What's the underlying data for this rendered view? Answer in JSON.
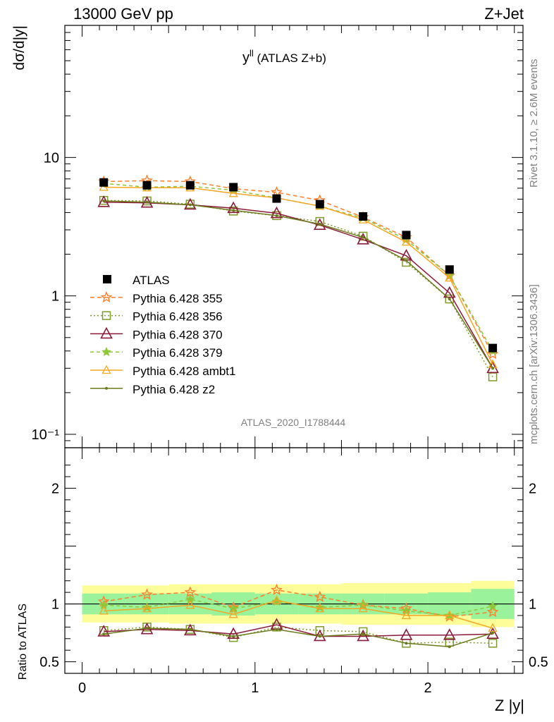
{
  "header": {
    "left": "13000 GeV pp",
    "right": "Z+Jet"
  },
  "title": {
    "main": "y",
    "sup": "ll",
    "rest": " (ATLAS Z+b)"
  },
  "side_labels": {
    "rivet": "Rivet 3.1.10, ≥ 2.6M events",
    "mcplots": "mcplots.cern.ch [arXiv:1306.3436]"
  },
  "watermark": "ATLAS_2020_I1788444",
  "axes": {
    "main_ylabel": "dσ/d|y|",
    "ratio_ylabel": "Ratio to ATLAS",
    "xlabel": "Z |y|",
    "main_ticks": [
      {
        "v": 0.1,
        "label": "10⁻¹"
      },
      {
        "v": 1,
        "label": "1"
      },
      {
        "v": 10,
        "label": "10"
      }
    ],
    "ratio_ticks": [
      {
        "v": 0.5,
        "label": "0.5"
      },
      {
        "v": 1,
        "label": "1"
      },
      {
        "v": 2,
        "label": "2"
      }
    ],
    "x_ticks": [
      {
        "v": 0,
        "label": "0"
      },
      {
        "v": 1,
        "label": "1"
      },
      {
        "v": 2,
        "label": "2"
      }
    ]
  },
  "colors": {
    "data": "#000000",
    "s355": "#ff7f2a",
    "s356": "#7f9a2a",
    "s370": "#8b1a3a",
    "s379": "#8fc63a",
    "ambt1": "#f5a623",
    "z2": "#6b7a1a",
    "band_inner": "#9af29a",
    "band_outer": "#fdfd9a"
  },
  "chart_data": {
    "type": "line",
    "x": [
      0.125,
      0.375,
      0.625,
      0.875,
      1.125,
      1.375,
      1.625,
      1.875,
      2.125,
      2.375
    ],
    "xlim": [
      -0.1,
      2.55
    ],
    "ylim": [
      0.08,
      90
    ],
    "ratio_ylim": [
      0.4,
      2.35
    ],
    "y_scale": "log",
    "xlabel": "Z |y|",
    "ylabel": "dσ/d|y|",
    "ratio_ylabel": "Ratio to ATLAS",
    "legend_position": "left-middle",
    "data": {
      "name": "ATLAS",
      "values": [
        6.6,
        6.3,
        6.3,
        6.1,
        5.05,
        4.6,
        3.75,
        2.75,
        1.55,
        0.42
      ],
      "band_inner": [
        0.09,
        0.09,
        0.09,
        0.1,
        0.09,
        0.09,
        0.09,
        0.09,
        0.1,
        0.13
      ],
      "band_outer": [
        0.16,
        0.16,
        0.17,
        0.17,
        0.17,
        0.17,
        0.18,
        0.18,
        0.18,
        0.2
      ]
    },
    "series": [
      {
        "name": "Pythia 6.428 355",
        "key": "s355",
        "marker": "star-open",
        "dash": "6,4",
        "values": [
          6.7,
          6.8,
          6.7,
          5.95,
          5.6,
          4.9,
          3.7,
          2.65,
          1.4,
          0.38
        ],
        "ratio": [
          1.02,
          1.08,
          1.1,
          0.97,
          1.12,
          1.06,
          0.99,
          0.96,
          0.89,
          0.93
        ]
      },
      {
        "name": "Pythia 6.428 356",
        "key": "s356",
        "marker": "square-open",
        "dash": "2,3",
        "values": [
          4.9,
          4.85,
          4.6,
          4.1,
          3.8,
          3.45,
          2.7,
          1.75,
          0.95,
          0.26
        ],
        "ratio": [
          0.77,
          0.8,
          0.78,
          0.71,
          0.8,
          0.77,
          0.76,
          0.66,
          0.67,
          0.66
        ]
      },
      {
        "name": "Pythia 6.428 370",
        "key": "s370",
        "marker": "triangle-open",
        "dash": "",
        "values": [
          4.75,
          4.7,
          4.55,
          4.3,
          3.95,
          3.25,
          2.55,
          1.95,
          1.05,
          0.3
        ],
        "ratio": [
          0.76,
          0.78,
          0.77,
          0.74,
          0.82,
          0.72,
          0.72,
          0.73,
          0.73,
          0.74
        ]
      },
      {
        "name": "Pythia 6.428 379",
        "key": "s379",
        "marker": "star-filled",
        "dash": "5,4",
        "values": [
          6.5,
          6.1,
          6.2,
          5.8,
          5.1,
          4.45,
          3.65,
          2.55,
          1.4,
          0.4
        ],
        "ratio": [
          0.99,
          0.97,
          1.04,
          0.96,
          1.02,
          0.97,
          0.99,
          0.94,
          0.9,
          0.98
        ]
      },
      {
        "name": "Pythia 6.428 ambt1",
        "key": "ambt1",
        "marker": "triangle-open-small",
        "dash": "",
        "values": [
          6.1,
          6.05,
          6.05,
          5.5,
          5.1,
          4.45,
          3.55,
          2.45,
          1.35,
          0.32
        ],
        "ratio": [
          0.94,
          0.96,
          0.99,
          0.91,
          1.03,
          0.96,
          0.96,
          0.9,
          0.9,
          0.79
        ]
      },
      {
        "name": "Pythia 6.428 z2",
        "key": "z2",
        "marker": "dot",
        "dash": "",
        "values": [
          4.85,
          4.75,
          4.55,
          4.15,
          3.8,
          3.3,
          2.65,
          1.8,
          0.95,
          0.3
        ],
        "ratio": [
          0.74,
          0.79,
          0.78,
          0.72,
          0.78,
          0.72,
          0.74,
          0.66,
          0.63,
          0.75
        ]
      }
    ]
  }
}
